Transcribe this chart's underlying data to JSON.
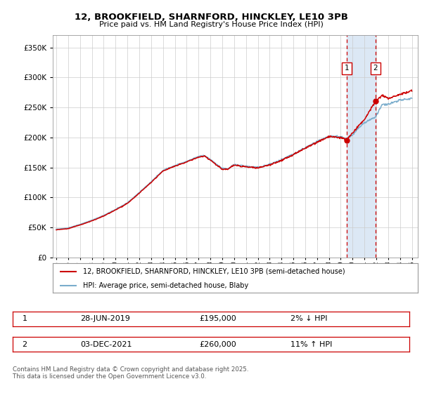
{
  "title_line1": "12, BROOKFIELD, SHARNFORD, HINCKLEY, LE10 3PB",
  "title_line2": "Price paid vs. HM Land Registry's House Price Index (HPI)",
  "legend_label1": "12, BROOKFIELD, SHARNFORD, HINCKLEY, LE10 3PB (semi-detached house)",
  "legend_label2": "HPI: Average price, semi-detached house, Blaby",
  "line1_color": "#cc0000",
  "line2_color": "#7aadcc",
  "dot_color": "#cc0000",
  "annotation1": {
    "label": "1",
    "date": "28-JUN-2019",
    "price": 195000,
    "pct": "2% ↓ HPI",
    "x": 2019.5
  },
  "annotation2": {
    "label": "2",
    "date": "03-DEC-2021",
    "price": 260000,
    "pct": "11% ↑ HPI",
    "x": 2021.92
  },
  "footer": "Contains HM Land Registry data © Crown copyright and database right 2025.\nThis data is licensed under the Open Government Licence v3.0.",
  "ylim": [
    0,
    370000
  ],
  "yticks": [
    0,
    50000,
    100000,
    150000,
    200000,
    250000,
    300000,
    350000
  ],
  "xlim_start": 1994.7,
  "xlim_end": 2025.5,
  "background_color": "#ffffff",
  "plot_bg_color": "#ffffff",
  "shaded_region_color": "#dce8f5",
  "grid_color": "#cccccc",
  "box_label_color": "#cc0000"
}
